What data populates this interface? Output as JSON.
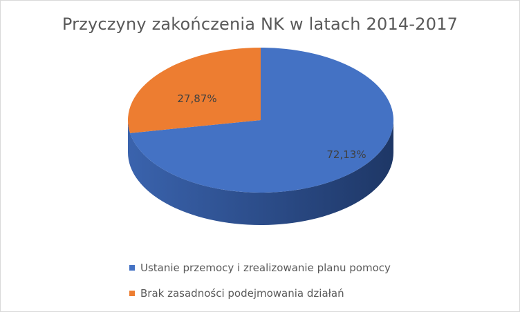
{
  "chart_data": {
    "type": "pie",
    "title": "Przyczyny zakończenia NK w latach 2014-2017",
    "categories": [
      "Ustanie przemocy i zrealizowanie planu pomocy",
      "Brak zasadności podejmowania działań"
    ],
    "values": [
      72.13,
      27.87
    ],
    "data_labels": [
      "72,13%",
      "27,87%"
    ],
    "colors": [
      "#4472C4",
      "#ED7D31"
    ],
    "legend_position": "bottom",
    "style": "3d"
  }
}
